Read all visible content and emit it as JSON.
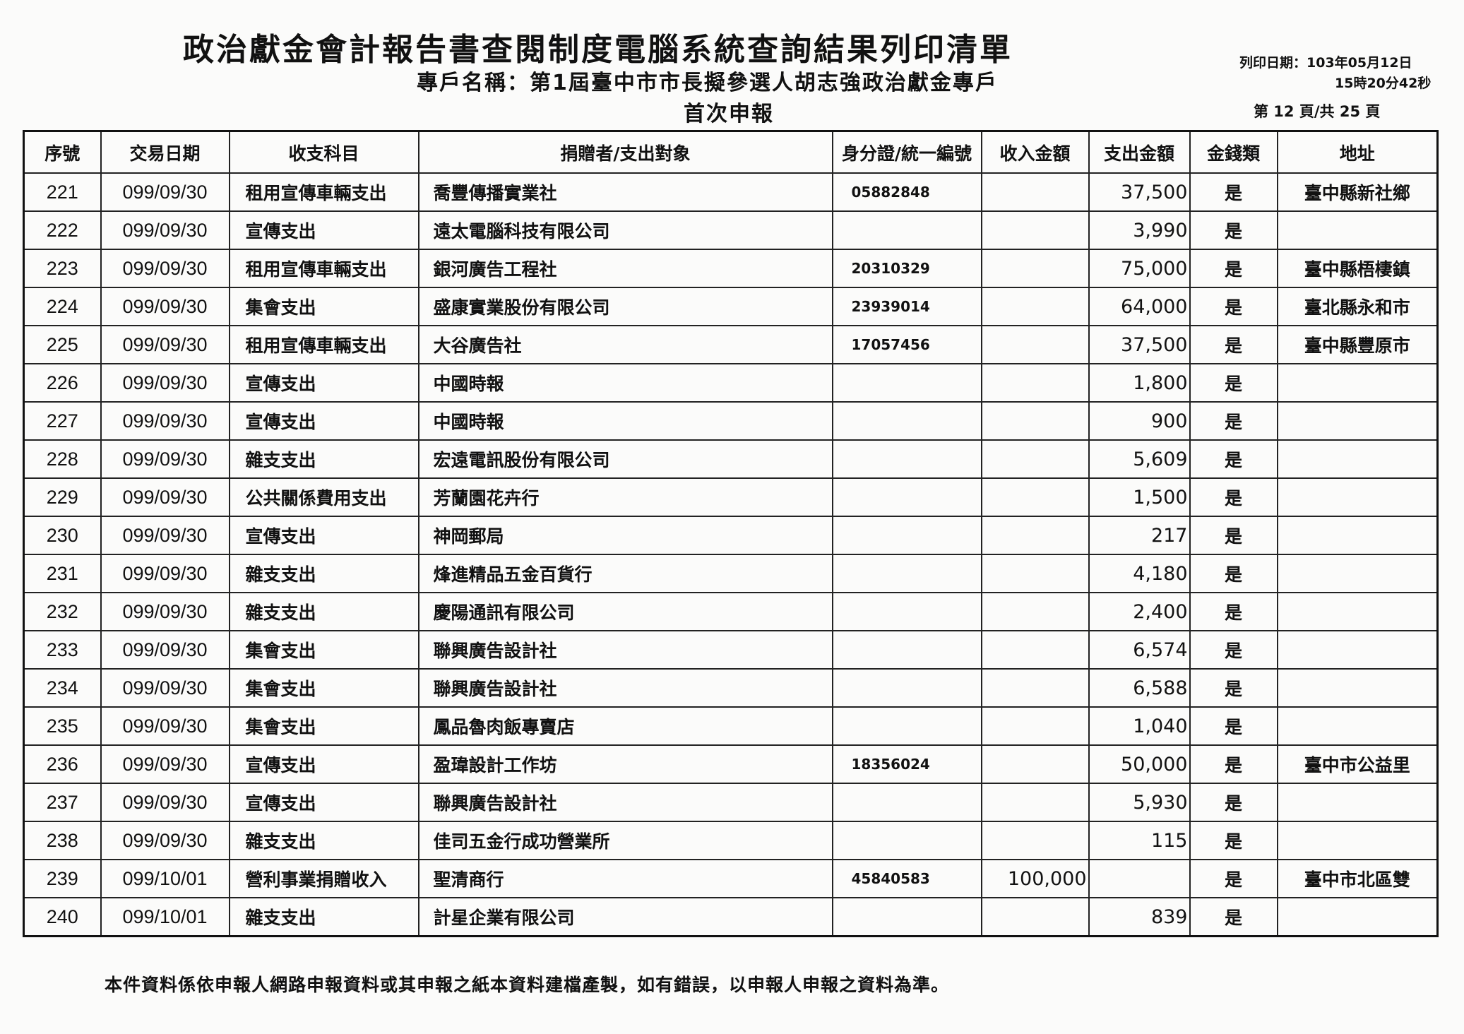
{
  "header": {
    "title": "政治獻金會計報告書查閱制度電腦系統查詢結果列印清單",
    "account_name": "專戶名稱：第1屆臺中市市長擬參選人胡志強政治獻金專戶",
    "report_type": "首次申報",
    "print_date": "列印日期：103年05月12日",
    "print_time": "15時20分42秒",
    "page_info": "第 12 頁/共 25 頁"
  },
  "table": {
    "columns": [
      "序號",
      "交易日期",
      "收支科目",
      "捐贈者/支出對象",
      "身分證/統一編號",
      "收入金額",
      "支出金額",
      "金錢類",
      "地址"
    ],
    "rows": [
      [
        "221",
        "099/09/30",
        "租用宣傳車輛支出",
        "喬豐傳播實業社",
        "05882848",
        "",
        "37,500",
        "是",
        "臺中縣新社鄉"
      ],
      [
        "222",
        "099/09/30",
        "宣傳支出",
        "遠太電腦科技有限公司",
        "",
        "",
        "3,990",
        "是",
        ""
      ],
      [
        "223",
        "099/09/30",
        "租用宣傳車輛支出",
        "銀河廣告工程社",
        "20310329",
        "",
        "75,000",
        "是",
        "臺中縣梧棲鎮"
      ],
      [
        "224",
        "099/09/30",
        "集會支出",
        "盛康實業股份有限公司",
        "23939014",
        "",
        "64,000",
        "是",
        "臺北縣永和市"
      ],
      [
        "225",
        "099/09/30",
        "租用宣傳車輛支出",
        "大谷廣告社",
        "17057456",
        "",
        "37,500",
        "是",
        "臺中縣豐原市"
      ],
      [
        "226",
        "099/09/30",
        "宣傳支出",
        "中國時報",
        "",
        "",
        "1,800",
        "是",
        ""
      ],
      [
        "227",
        "099/09/30",
        "宣傳支出",
        "中國時報",
        "",
        "",
        "900",
        "是",
        ""
      ],
      [
        "228",
        "099/09/30",
        "雜支支出",
        "宏遠電訊股份有限公司",
        "",
        "",
        "5,609",
        "是",
        ""
      ],
      [
        "229",
        "099/09/30",
        "公共關係費用支出",
        "芳蘭園花卉行",
        "",
        "",
        "1,500",
        "是",
        ""
      ],
      [
        "230",
        "099/09/30",
        "宣傳支出",
        "神岡郵局",
        "",
        "",
        "217",
        "是",
        ""
      ],
      [
        "231",
        "099/09/30",
        "雜支支出",
        "烽進精品五金百貨行",
        "",
        "",
        "4,180",
        "是",
        ""
      ],
      [
        "232",
        "099/09/30",
        "雜支支出",
        "慶陽通訊有限公司",
        "",
        "",
        "2,400",
        "是",
        ""
      ],
      [
        "233",
        "099/09/30",
        "集會支出",
        "聯興廣告設計社",
        "",
        "",
        "6,574",
        "是",
        ""
      ],
      [
        "234",
        "099/09/30",
        "集會支出",
        "聯興廣告設計社",
        "",
        "",
        "6,588",
        "是",
        ""
      ],
      [
        "235",
        "099/09/30",
        "集會支出",
        "鳳品魯肉飯專賣店",
        "",
        "",
        "1,040",
        "是",
        ""
      ],
      [
        "236",
        "099/09/30",
        "宣傳支出",
        "盈瑋設計工作坊",
        "18356024",
        "",
        "50,000",
        "是",
        "臺中市公益里"
      ],
      [
        "237",
        "099/09/30",
        "宣傳支出",
        "聯興廣告設計社",
        "",
        "",
        "5,930",
        "是",
        ""
      ],
      [
        "238",
        "099/09/30",
        "雜支支出",
        "佳司五金行成功營業所",
        "",
        "",
        "115",
        "是",
        ""
      ],
      [
        "239",
        "099/10/01",
        "營利事業捐贈收入",
        "聖清商行",
        "45840583",
        "100,000",
        "",
        "是",
        "臺中市北區雙"
      ],
      [
        "240",
        "099/10/01",
        "雜支支出",
        "計星企業有限公司",
        "",
        "",
        "839",
        "是",
        ""
      ]
    ]
  },
  "footer": {
    "note": "本件資料係依申報人網路申報資料或其申報之紙本資料建檔產製，如有錯誤，以申報人申報之資料為準。"
  }
}
